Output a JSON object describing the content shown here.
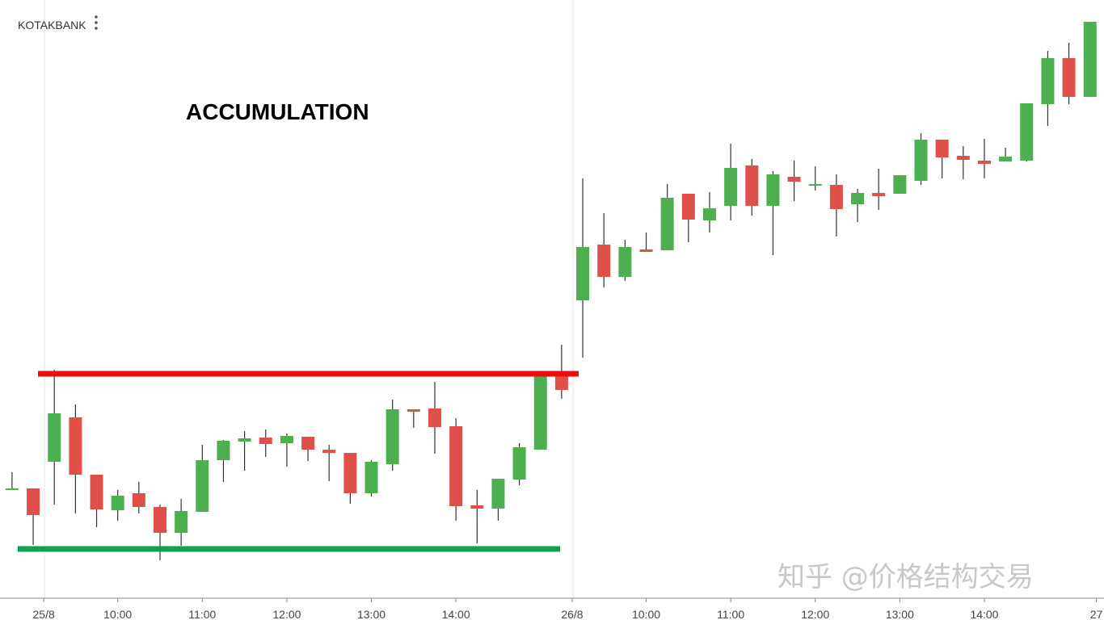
{
  "chart_data": {
    "type": "candlestick",
    "title": "KOTAKBANK",
    "annotation": "ACCUMULATION",
    "watermark": "知乎 @价格结构交易",
    "up_color": "#4caf50",
    "down_color": "#e0504a",
    "xlim": [
      -0.57,
      51.66
    ],
    "ylim": [
      0,
      740
    ],
    "xticks": [
      {
        "value": 1.5,
        "label": "25/8"
      },
      {
        "value": 5,
        "label": "10:00"
      },
      {
        "value": 9,
        "label": "11:00"
      },
      {
        "value": 13,
        "label": "12:00"
      },
      {
        "value": 17,
        "label": "13:00"
      },
      {
        "value": 21,
        "label": "14:00"
      },
      {
        "value": 26.5,
        "label": "26/8"
      },
      {
        "value": 30,
        "label": "10:00"
      },
      {
        "value": 34,
        "label": "11:00"
      },
      {
        "value": 38,
        "label": "12:00"
      },
      {
        "value": 42,
        "label": "13:00"
      },
      {
        "value": 46,
        "label": "14:00"
      },
      {
        "value": 51.3,
        "label": "27"
      }
    ],
    "open": [
      133,
      135,
      168,
      223,
      152,
      108,
      129,
      112,
      80,
      106,
      170,
      193,
      198,
      191,
      199,
      183,
      179,
      129,
      165,
      233,
      234,
      212,
      114,
      110,
      146,
      183,
      276,
      368,
      437,
      397,
      431,
      430,
      500,
      467,
      485,
      535,
      485,
      521,
      511,
      511,
      487,
      501,
      500,
      516,
      567,
      547,
      541,
      540,
      541,
      611,
      668,
      620
    ],
    "high": [
      155,
      135,
      282,
      239,
      152,
      133,
      143,
      115,
      122,
      189,
      195,
      206,
      208,
      203,
      199,
      189,
      179,
      170,
      245,
      233,
      267,
      222,
      133,
      147,
      191,
      276,
      313,
      519,
      476,
      443,
      452,
      512,
      500,
      502,
      562,
      543,
      528,
      541,
      534,
      524,
      506,
      531,
      523,
      575,
      567,
      559,
      568,
      557,
      612,
      677,
      687,
      713
    ],
    "low": [
      133,
      65,
      115,
      104,
      87,
      95,
      104,
      46,
      64,
      106,
      143,
      157,
      174,
      162,
      169,
      144,
      116,
      125,
      157,
      210,
      178,
      95,
      67,
      95,
      139,
      183,
      246,
      297,
      384,
      392,
      428,
      430,
      440,
      452,
      467,
      473,
      424,
      491,
      504,
      447,
      465,
      480,
      500,
      511,
      519,
      518,
      519,
      540,
      540,
      584,
      611,
      620
    ],
    "close": [
      135,
      102,
      228,
      152,
      109,
      126,
      112,
      80,
      107,
      170,
      194,
      197,
      190,
      200,
      183,
      179,
      129,
      168,
      233,
      230,
      211,
      113,
      110,
      147,
      186,
      276,
      257,
      434,
      397,
      434,
      428,
      495,
      468,
      482,
      532,
      485,
      524,
      515,
      512,
      481,
      501,
      497,
      523,
      567,
      545,
      542,
      537,
      546,
      612,
      668,
      620,
      713
    ],
    "levels": [
      {
        "value": 277,
        "color": "#e8100f"
      },
      {
        "value": 60,
        "color": "#10a050"
      }
    ]
  }
}
